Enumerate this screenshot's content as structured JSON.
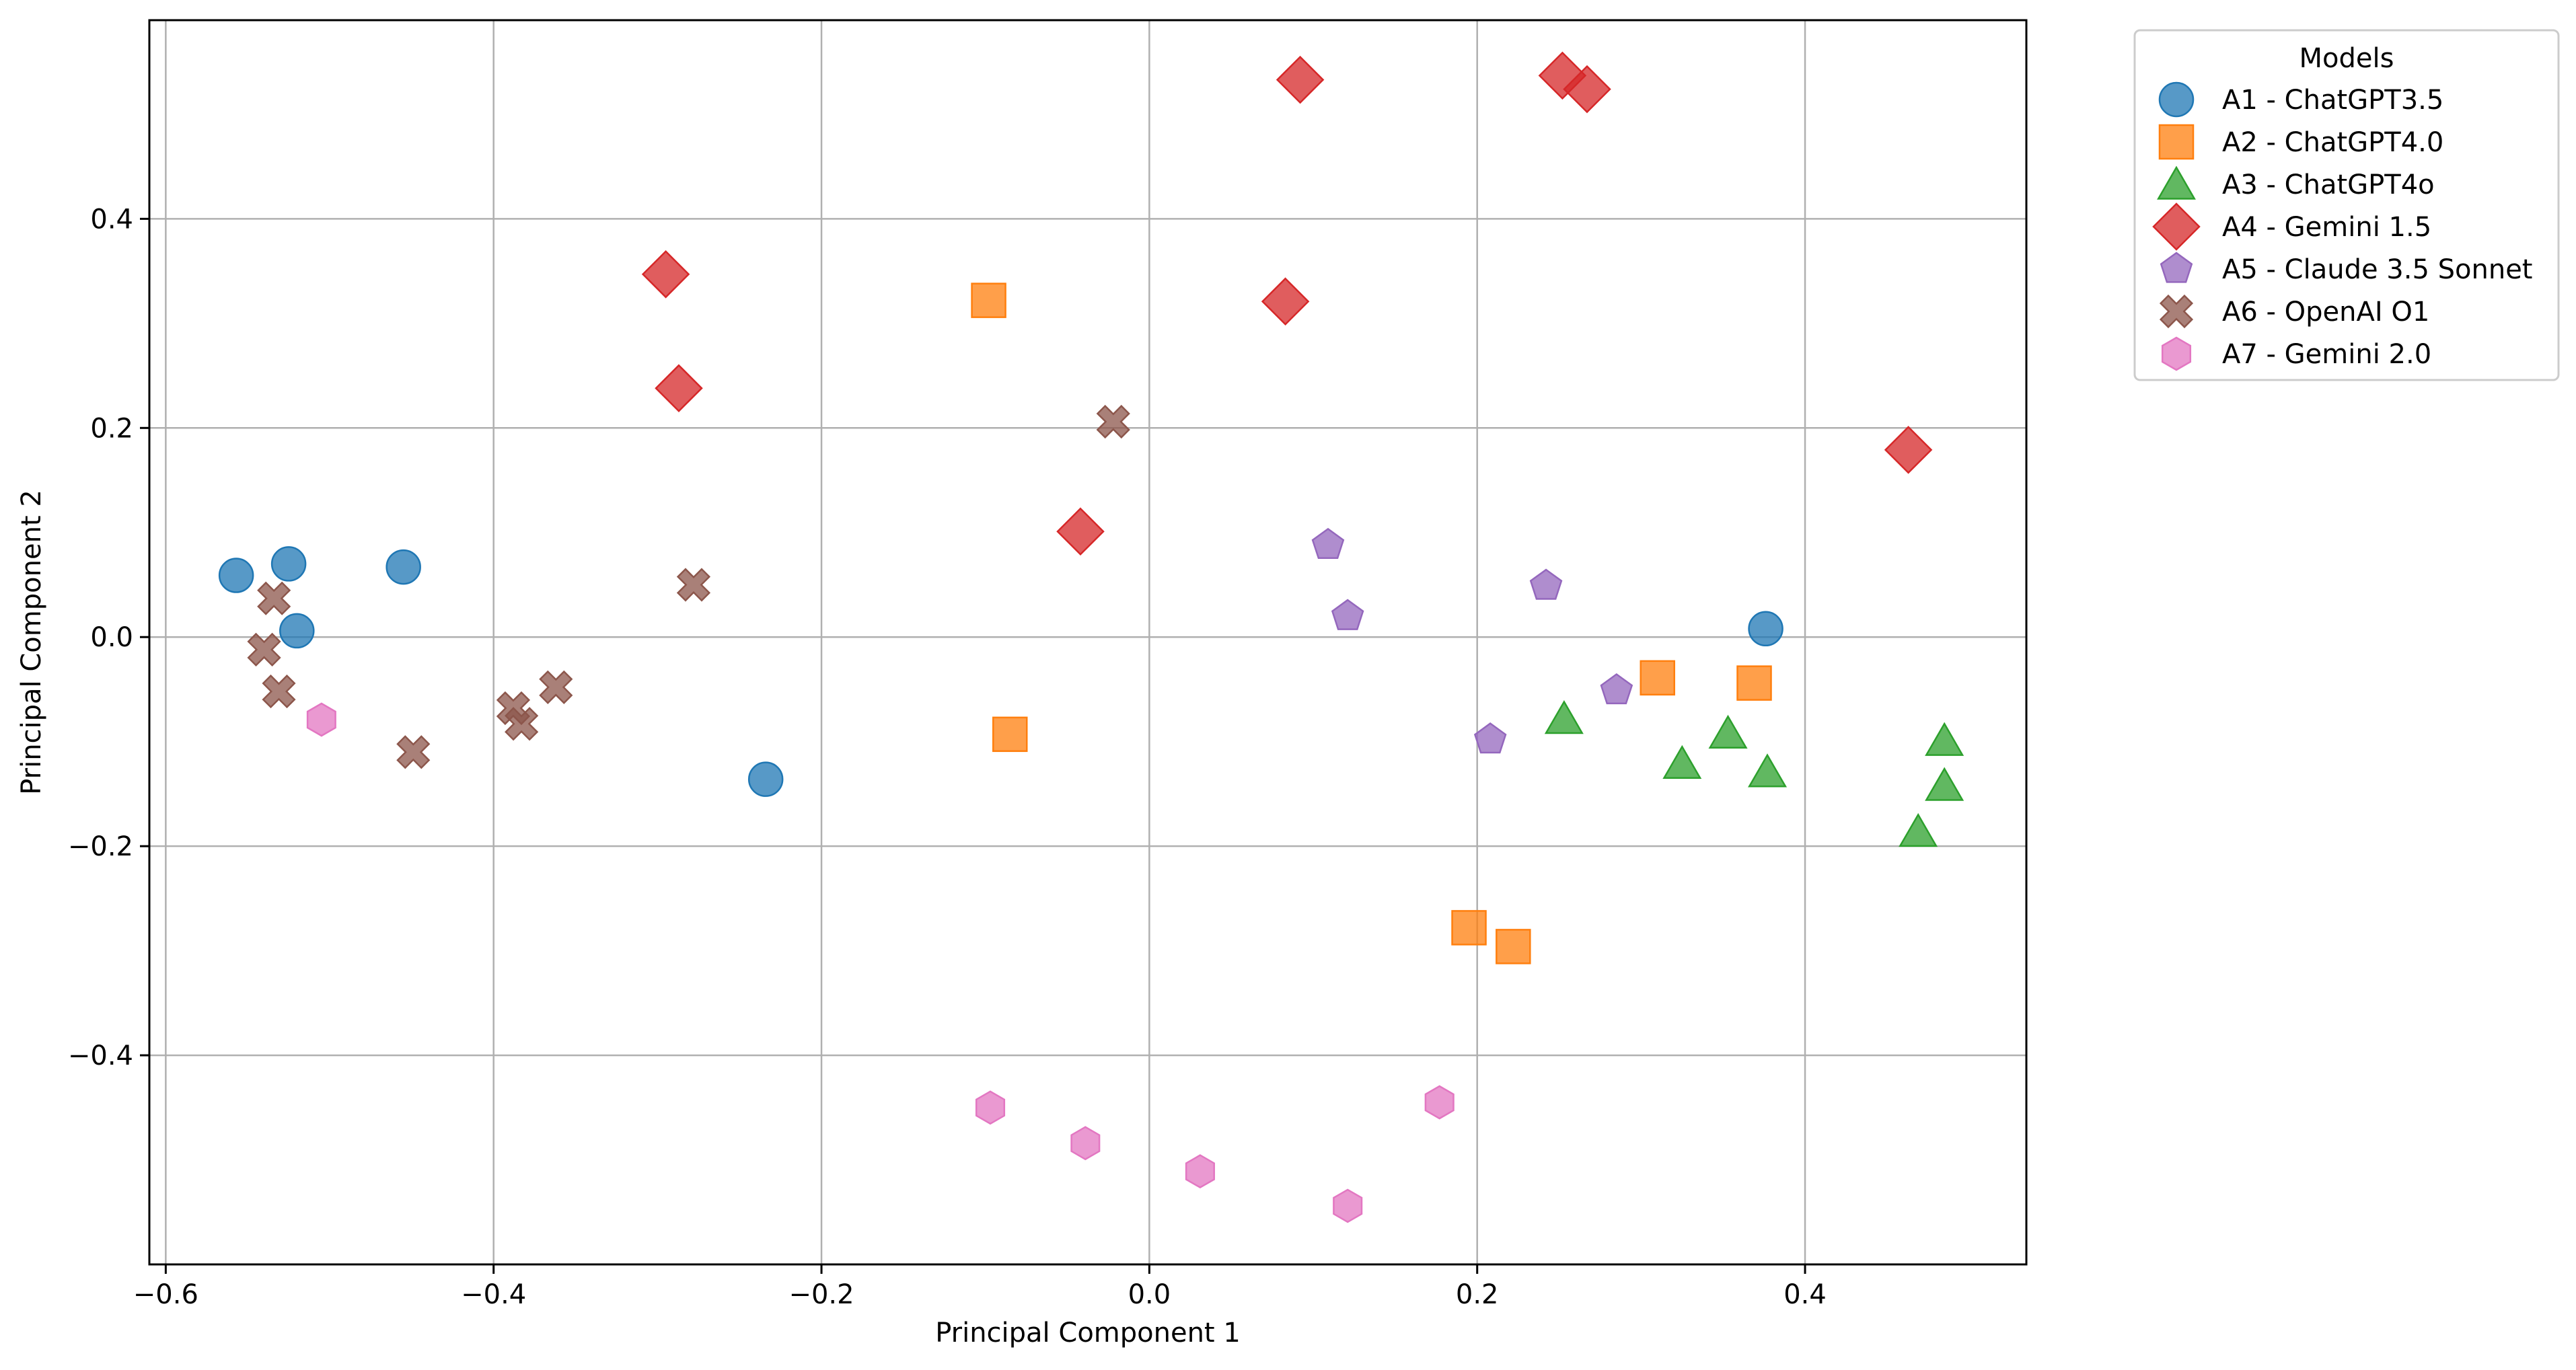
{
  "chart_data": {
    "type": "scatter",
    "xlabel": "Principal Component 1",
    "ylabel": "Principal Component 2",
    "xlim": [
      -0.61,
      0.535
    ],
    "ylim": [
      -0.6,
      0.59
    ],
    "grid": true,
    "x_ticks": [
      -0.6,
      -0.4,
      -0.2,
      0.0,
      0.2,
      0.4
    ],
    "x_tick_labels": [
      "−0.6",
      "−0.4",
      "−0.2",
      "0.0",
      "0.2",
      "0.4"
    ],
    "y_ticks": [
      -0.4,
      -0.2,
      0.0,
      0.2,
      0.4
    ],
    "y_tick_labels": [
      "−0.4",
      "−0.2",
      "0.0",
      "0.2",
      "0.4"
    ],
    "legend": {
      "title": "Models",
      "location": "outside-top-right"
    },
    "series": [
      {
        "name": "A1 - ChatGPT3.5",
        "color": "#1f77b4",
        "marker": "circle",
        "points": [
          [
            -0.557,
            0.059
          ],
          [
            -0.525,
            0.07
          ],
          [
            -0.52,
            0.006
          ],
          [
            -0.455,
            0.067
          ],
          [
            -0.234,
            -0.136
          ],
          [
            0.376,
            0.008
          ]
        ]
      },
      {
        "name": "A2 - ChatGPT4.0",
        "color": "#ff7f0e",
        "marker": "square",
        "points": [
          [
            -0.098,
            0.322
          ],
          [
            -0.085,
            -0.093
          ],
          [
            0.195,
            -0.278
          ],
          [
            0.222,
            -0.296
          ],
          [
            0.31,
            -0.039
          ],
          [
            0.369,
            -0.044
          ]
        ]
      },
      {
        "name": "A3 - ChatGPT4o",
        "color": "#2ca02c",
        "marker": "triangle",
        "points": [
          [
            0.253,
            -0.078
          ],
          [
            0.325,
            -0.121
          ],
          [
            0.353,
            -0.092
          ],
          [
            0.377,
            -0.129
          ],
          [
            0.469,
            -0.186
          ],
          [
            0.485,
            -0.099
          ],
          [
            0.485,
            -0.142
          ]
        ]
      },
      {
        "name": "A4 - Gemini 1.5",
        "color": "#d62728",
        "marker": "diamond",
        "points": [
          [
            -0.295,
            0.347
          ],
          [
            -0.287,
            0.238
          ],
          [
            -0.042,
            0.101
          ],
          [
            0.083,
            0.321
          ],
          [
            0.092,
            0.533
          ],
          [
            0.252,
            0.537
          ],
          [
            0.267,
            0.524
          ],
          [
            0.463,
            0.179
          ]
        ]
      },
      {
        "name": "A5 - Claude 3.5 Sonnet",
        "color": "#9467bd",
        "marker": "pentagon",
        "points": [
          [
            0.109,
            0.088
          ],
          [
            0.121,
            0.02
          ],
          [
            0.208,
            -0.098
          ],
          [
            0.242,
            0.049
          ],
          [
            0.285,
            -0.051
          ]
        ]
      },
      {
        "name": "A6 - OpenAI O1",
        "color": "#8c564b",
        "marker": "x",
        "points": [
          [
            -0.534,
            0.037
          ],
          [
            -0.54,
            -0.012
          ],
          [
            -0.531,
            -0.052
          ],
          [
            -0.449,
            -0.11
          ],
          [
            -0.388,
            -0.068
          ],
          [
            -0.383,
            -0.083
          ],
          [
            -0.362,
            -0.048
          ],
          [
            -0.278,
            0.05
          ],
          [
            -0.022,
            0.206
          ]
        ]
      },
      {
        "name": "A7 - Gemini 2.0",
        "color": "#e377c2",
        "marker": "hexagon",
        "points": [
          [
            -0.505,
            -0.079
          ],
          [
            -0.097,
            -0.45
          ],
          [
            -0.039,
            -0.484
          ],
          [
            0.031,
            -0.511
          ],
          [
            0.121,
            -0.544
          ],
          [
            0.177,
            -0.445
          ]
        ]
      }
    ]
  }
}
